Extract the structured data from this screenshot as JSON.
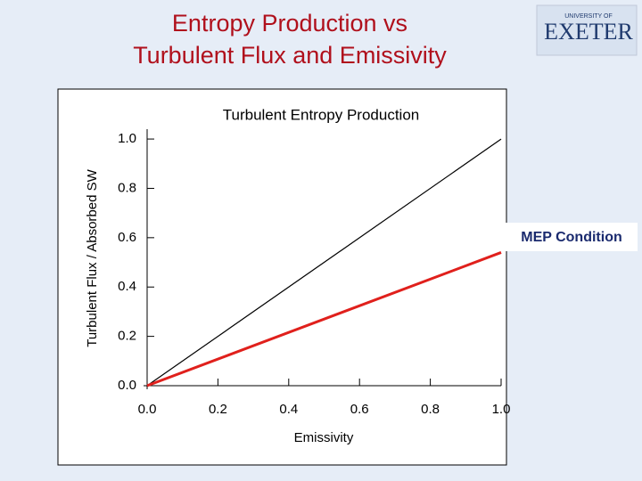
{
  "header": {
    "title": [
      "Entropy Production vs",
      "Turbulent  Flux and Emissivity"
    ]
  },
  "logo": {
    "top": "UNIVERSITY OF",
    "name": "EXETER"
  },
  "chart_data": {
    "type": "line",
    "title": "Turbulent  Entropy  Production",
    "x_label": "Emissivity",
    "y_label": "Turbulent  Flux  /  Absorbed  SW",
    "x": [
      0,
      1
    ],
    "series": [
      {
        "color": "#000000",
        "values": [
          0,
          1
        ]
      },
      {
        "name": "MEP Condition",
        "color": "#e0201c",
        "values": [
          0,
          0.54
        ]
      }
    ],
    "xlim": [
      0,
      1
    ],
    "ylim": [
      0,
      1.04
    ],
    "xticks": [
      {
        "value": 0,
        "label": "0.0"
      },
      {
        "value": 0.2,
        "label": "0.2"
      },
      {
        "value": 0.4,
        "label": "0.4"
      },
      {
        "value": 0.6,
        "label": "0.6"
      },
      {
        "value": 0.8,
        "label": "0.8"
      },
      {
        "value": 1,
        "label": "1.0"
      }
    ],
    "yticks": [
      {
        "value": 0,
        "label": "0.0"
      },
      {
        "value": 0.2,
        "label": "0.2"
      },
      {
        "value": 0.4,
        "label": "0.4"
      },
      {
        "value": 0.6,
        "label": "0.6"
      },
      {
        "value": 0.8,
        "label": "0.8"
      },
      {
        "value": 1,
        "label": "1.0"
      }
    ]
  }
}
